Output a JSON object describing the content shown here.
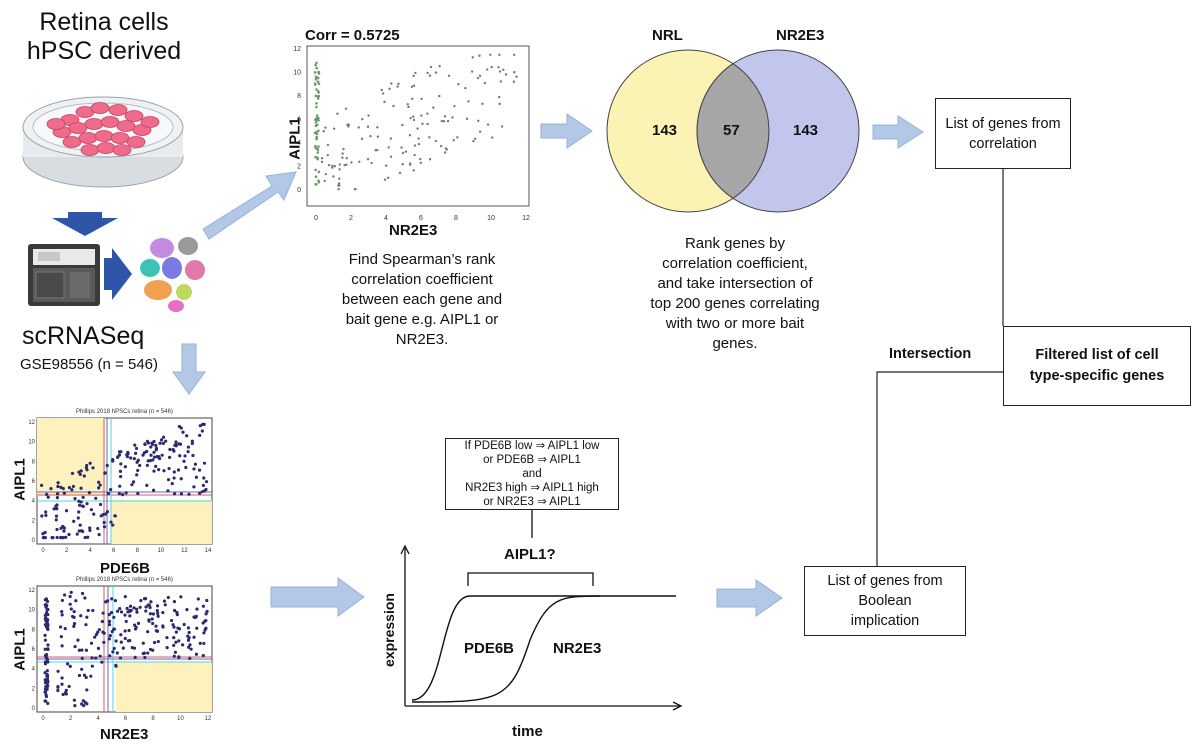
{
  "source": {
    "title_line1": "Retina cells",
    "title_line2": "hPSC derived",
    "method": "scRNASeq",
    "dataset": "GSE98556 (n = 546)"
  },
  "correlation": {
    "corr_label": "Corr = 0.5725",
    "x_label": "NR2E3",
    "y_label": "AIPL1",
    "x_ticks": [
      "0",
      "2",
      "4",
      "6",
      "8",
      "10",
      "12"
    ],
    "y_ticks": [
      "0",
      "2",
      "4",
      "6",
      "8",
      "10",
      "12"
    ],
    "description": [
      "Find Spearman’s rank",
      "correlation coefficient",
      "between each gene and",
      "bait gene e.g. AIPL1 or",
      "NR2E3."
    ]
  },
  "venn": {
    "left_label": "NRL",
    "right_label": "NR2E3",
    "left_only": "143",
    "overlap": "57",
    "right_only": "143",
    "description": [
      "Rank genes by",
      "correlation coefficient,",
      "and take intersection of",
      "top 200 genes correlating",
      "with two or more bait",
      "genes."
    ],
    "colors": {
      "left": "#fbf3b4",
      "right": "#c2c6ec",
      "overlap": "#a6a6a6"
    }
  },
  "boolean_plots": {
    "top": {
      "title": "Phillips 2018 hPSCs retina (n = 546)",
      "x_label": "PDE6B",
      "y_label": "AIPL1"
    },
    "bottom": {
      "title": "Phillips 2018 hPSCs retina (n = 546)",
      "x_label": "NR2E3",
      "y_label": "AIPL1"
    }
  },
  "implication": {
    "box_lines": [
      "If PDE6B low ⇒ AIPL1 low",
      "or PDE6B ⇒ AIPL1",
      "and",
      "NR2E3 high ⇒ AIPL1 high",
      "or NR2E3 ⇒ AIPL1"
    ],
    "question": "AIPL1?",
    "y_label": "expression",
    "x_label": "time",
    "curve1": "PDE6B",
    "curve2": "NR2E3"
  },
  "outputs": {
    "correlation_list": [
      "List of genes from",
      "correlation"
    ],
    "boolean_list": [
      "List of genes from",
      "Boolean",
      "implication"
    ],
    "intersection": "Intersection",
    "filtered": [
      "Filtered list of cell",
      "type-specific genes"
    ]
  },
  "colors": {
    "arrow": "#b3c8e6",
    "arrow_stroke": "#98b2d6",
    "dark_arrow": "#2f55a8",
    "scatter_point": "#2a2a6e",
    "quadrant": "#fdf2bd"
  }
}
